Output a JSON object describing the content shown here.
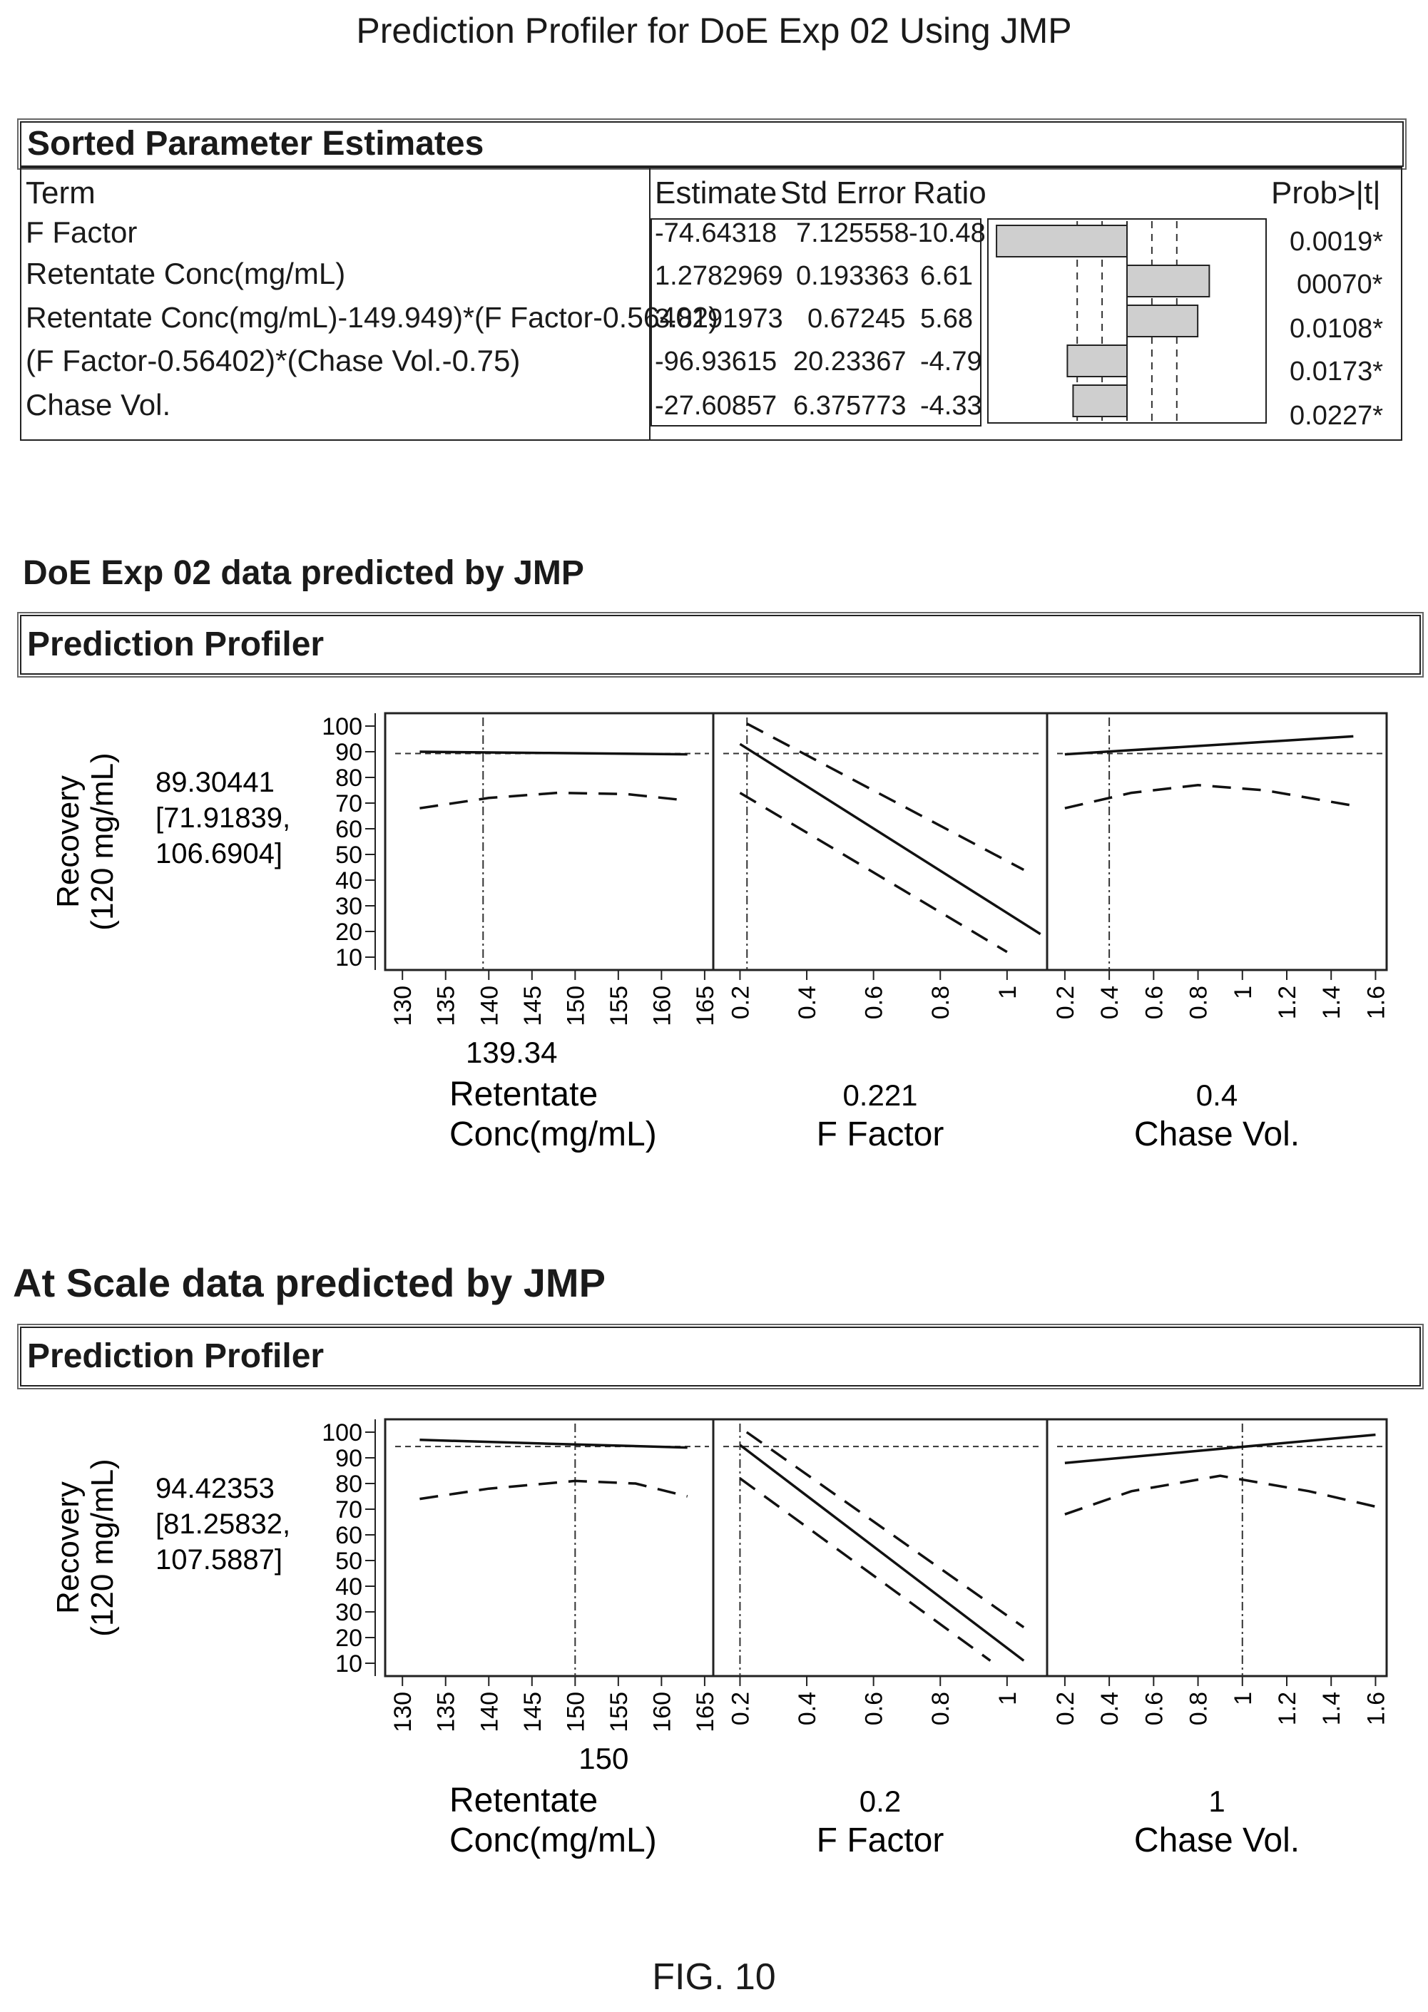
{
  "page_title": "Prediction Profiler for DoE Exp 02 Using JMP",
  "estimates": {
    "title": "Sorted Parameter Estimates",
    "headers": {
      "term": "Term",
      "estimate": "Estimate",
      "std_error": "Std Error",
      "ratio": "Ratio",
      "prob": "Prob>|t|"
    },
    "rows": [
      {
        "term": "F Factor",
        "estimate": "-74.64318",
        "std_error": "7.125558",
        "ratio": "-10.48",
        "prob": "0.0019*"
      },
      {
        "term": "Retentate Conc(mg/mL)",
        "estimate": "1.2782969",
        "std_error": "0.193363",
        "ratio": "6.61",
        "prob": "00070*"
      },
      {
        "term": "Retentate Conc(mg/mL)-149.949)*(F Factor-0.56402)",
        "estimate": "3.8191973",
        "std_error": "0.67245",
        "ratio": "5.68",
        "prob": "0.0108*"
      },
      {
        "term": "(F Factor-0.56402)*(Chase Vol.-0.75)",
        "estimate": "-96.93615",
        "std_error": "20.23367",
        "ratio": "-4.79",
        "prob": "0.0173*"
      },
      {
        "term": "Chase Vol.",
        "estimate": "-27.60857",
        "std_error": "6.375773",
        "ratio": "-4.33",
        "prob": "0.0227*"
      }
    ]
  },
  "doe": {
    "heading": "DoE Exp 02 data predicted by JMP",
    "profiler_title": "Prediction Profiler",
    "ylabel_line1": "Recovery",
    "ylabel_line2": "(120 mg/mL)",
    "pred_value": "89.30441",
    "pred_ci_low": "[71.91839,",
    "pred_ci_high": "106.6904]",
    "factors": [
      {
        "current": "139.34",
        "name_line1": "Retentate",
        "name_line2": "Conc(mg/mL)"
      },
      {
        "current": "0.221",
        "name_line1": "F Factor",
        "name_line2": ""
      },
      {
        "current": "0.4",
        "name_line1": "Chase Vol.",
        "name_line2": ""
      }
    ]
  },
  "atscale": {
    "heading": "At Scale data predicted by JMP",
    "profiler_title": "Prediction Profiler",
    "ylabel_line1": "Recovery",
    "ylabel_line2": "(120 mg/mL)",
    "pred_value": "94.42353",
    "pred_ci_low": "[81.25832,",
    "pred_ci_high": "107.5887]",
    "factors": [
      {
        "current": "150",
        "name_line1": "Retentate",
        "name_line2": "Conc(mg/mL)"
      },
      {
        "current": "0.2",
        "name_line1": "F Factor",
        "name_line2": ""
      },
      {
        "current": "1",
        "name_line1": "Chase Vol.",
        "name_line2": ""
      }
    ]
  },
  "fig_label": "FIG. 10",
  "chart_data": [
    {
      "type": "bar",
      "categories": [
        "F Factor",
        "Retentate Conc(mg/mL)",
        "Retentate Conc(mg/mL)-149.949)*(F Factor-0.56402)",
        "(F Factor-0.56402)*(Chase Vol.-0.75)",
        "Chase Vol."
      ],
      "values": [
        -10.48,
        6.61,
        5.68,
        -4.79,
        -4.33
      ],
      "xlim": [
        -11,
        11
      ],
      "reference_lines": [
        -4,
        -2,
        2,
        4
      ]
    },
    {
      "type": "line",
      "ylim": [
        5,
        105
      ],
      "yticks": [
        10,
        20,
        30,
        40,
        50,
        60,
        70,
        80,
        90,
        100
      ],
      "predicted": 89.3,
      "panels": [
        {
          "xticks": [
            130,
            135,
            140,
            145,
            150,
            155,
            160,
            165
          ],
          "xlim": [
            128,
            166
          ],
          "current": 139.34,
          "series": [
            {
              "x": [
                132,
                147,
                163
              ],
              "y": [
                90,
                89.5,
                89
              ]
            },
            {
              "x": [
                132,
                140,
                148,
                156,
                163
              ],
              "y": [
                68,
                72,
                74,
                73.5,
                71
              ],
              "dashed": true
            }
          ]
        },
        {
          "xticks": [
            0.2,
            0.4,
            0.6,
            0.8,
            1
          ],
          "xlim": [
            0.12,
            1.12
          ],
          "current": 0.221,
          "series": [
            {
              "x": [
                0.2,
                1.1
              ],
              "y": [
                93,
                19
              ]
            },
            {
              "x": [
                0.22,
                1.05
              ],
              "y": [
                101,
                44
              ],
              "dashed": true
            },
            {
              "x": [
                0.2,
                1.0
              ],
              "y": [
                74,
                12
              ],
              "dashed": true
            }
          ]
        },
        {
          "xticks": [
            0.2,
            0.4,
            0.6,
            0.8,
            1,
            1.2,
            1.4,
            1.6
          ],
          "xlim": [
            0.12,
            1.65
          ],
          "current": 0.4,
          "series": [
            {
              "x": [
                0.2,
                1.5
              ],
              "y": [
                89,
                96
              ]
            },
            {
              "x": [
                0.2,
                0.5,
                0.8,
                1.1,
                1.5
              ],
              "y": [
                68,
                74,
                77,
                75,
                69
              ],
              "dashed": true
            }
          ]
        }
      ]
    },
    {
      "type": "line",
      "ylim": [
        5,
        105
      ],
      "yticks": [
        10,
        20,
        30,
        40,
        50,
        60,
        70,
        80,
        90,
        100
      ],
      "predicted": 94.4,
      "panels": [
        {
          "xticks": [
            130,
            135,
            140,
            145,
            150,
            155,
            160,
            165
          ],
          "xlim": [
            128,
            166
          ],
          "current": 150,
          "series": [
            {
              "x": [
                132,
                147,
                163
              ],
              "y": [
                97,
                95.5,
                94
              ]
            },
            {
              "x": [
                132,
                140,
                150,
                157,
                163
              ],
              "y": [
                74,
                78,
                81,
                80,
                75
              ],
              "dashed": true
            }
          ]
        },
        {
          "xticks": [
            0.2,
            0.4,
            0.6,
            0.8,
            1
          ],
          "xlim": [
            0.12,
            1.12
          ],
          "current": 0.2,
          "series": [
            {
              "x": [
                0.2,
                1.05
              ],
              "y": [
                95,
                11
              ]
            },
            {
              "x": [
                0.22,
                1.05
              ],
              "y": [
                100,
                24
              ],
              "dashed": true
            },
            {
              "x": [
                0.2,
                0.95
              ],
              "y": [
                82,
                11
              ],
              "dashed": true
            }
          ]
        },
        {
          "xticks": [
            0.2,
            0.4,
            0.6,
            0.8,
            1,
            1.2,
            1.4,
            1.6
          ],
          "xlim": [
            0.12,
            1.65
          ],
          "current": 1,
          "series": [
            {
              "x": [
                0.2,
                1.6
              ],
              "y": [
                88,
                99
              ]
            },
            {
              "x": [
                0.2,
                0.5,
                0.9,
                1.3,
                1.6
              ],
              "y": [
                68,
                77,
                83,
                77,
                71
              ],
              "dashed": true
            }
          ]
        }
      ]
    }
  ]
}
